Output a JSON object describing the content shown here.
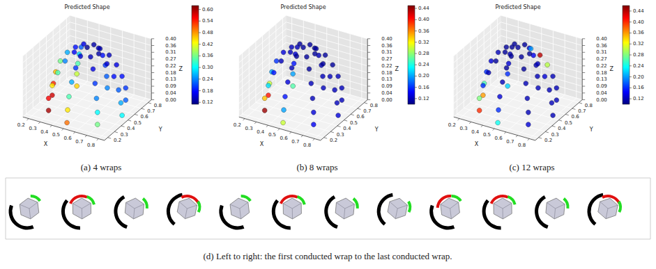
{
  "chart_data": [
    {
      "type": "scatter3d",
      "title": "Predicted Shape",
      "caption": "(a) 4 wraps",
      "xlabel": "X",
      "ylabel": "Y",
      "zlabel": "Z",
      "grid": true,
      "xlim": [
        0.15,
        0.85
      ],
      "ylim": [
        0.15,
        0.85
      ],
      "zlim": [
        0,
        0.4
      ],
      "xticks": [
        0.2,
        0.3,
        0.4,
        0.5,
        0.6,
        0.7,
        0.8
      ],
      "yticks": [
        0.2,
        0.3,
        0.4,
        0.5,
        0.6,
        0.7,
        0.8
      ],
      "zticks": [
        {
          "value": 0,
          "label": "0.00"
        },
        {
          "value": 0.0444,
          "label": "0.04"
        },
        {
          "value": 0.0889,
          "label": "0.09"
        },
        {
          "value": 0.1333,
          "label": "0.13"
        },
        {
          "value": 0.1778,
          "label": "0.18"
        },
        {
          "value": 0.2222,
          "label": "0.22"
        },
        {
          "value": 0.2667,
          "label": "0.27"
        },
        {
          "value": 0.3111,
          "label": "0.31"
        },
        {
          "value": 0.3556,
          "label": "0.36"
        },
        {
          "value": 0.4,
          "label": "0.40"
        }
      ],
      "color_range": [
        0.11,
        0.62
      ],
      "color_ticks": [
        0.12,
        0.18,
        0.24,
        {
          "value": 0.3,
          "label": "0.30"
        },
        0.36,
        0.42,
        0.48,
        0.54,
        {
          "value": 0.6,
          "label": "0.60"
        }
      ],
      "points": [
        [
          0.8,
          0.5,
          0.02,
          0.3
        ],
        [
          0.71,
          0.71,
          0.02,
          0.22
        ],
        [
          0.5,
          0.8,
          0.02,
          0.24
        ],
        [
          0.29,
          0.71,
          0.02,
          0.45
        ],
        [
          0.2,
          0.5,
          0.02,
          0.58
        ],
        [
          0.29,
          0.29,
          0.02,
          0.6
        ],
        [
          0.5,
          0.2,
          0.02,
          0.5
        ],
        [
          0.71,
          0.29,
          0.02,
          0.36
        ],
        [
          0.79,
          0.5,
          0.1,
          0.26
        ],
        [
          0.71,
          0.71,
          0.1,
          0.2
        ],
        [
          0.5,
          0.79,
          0.1,
          0.22
        ],
        [
          0.29,
          0.71,
          0.1,
          0.4
        ],
        [
          0.21,
          0.5,
          0.1,
          0.54
        ],
        [
          0.29,
          0.29,
          0.1,
          0.56
        ],
        [
          0.5,
          0.21,
          0.1,
          0.44
        ],
        [
          0.71,
          0.29,
          0.1,
          0.3
        ],
        [
          0.77,
          0.5,
          0.18,
          0.22
        ],
        [
          0.69,
          0.69,
          0.18,
          0.18
        ],
        [
          0.5,
          0.77,
          0.18,
          0.2
        ],
        [
          0.31,
          0.69,
          0.18,
          0.34
        ],
        [
          0.23,
          0.5,
          0.18,
          0.46
        ],
        [
          0.31,
          0.31,
          0.18,
          0.44
        ],
        [
          0.5,
          0.23,
          0.18,
          0.34
        ],
        [
          0.69,
          0.31,
          0.18,
          0.24
        ],
        [
          0.73,
          0.5,
          0.26,
          0.18
        ],
        [
          0.66,
          0.66,
          0.26,
          0.16
        ],
        [
          0.5,
          0.73,
          0.26,
          0.18
        ],
        [
          0.34,
          0.66,
          0.26,
          0.28
        ],
        [
          0.27,
          0.5,
          0.26,
          0.36
        ],
        [
          0.34,
          0.34,
          0.26,
          0.34
        ],
        [
          0.5,
          0.27,
          0.26,
          0.26
        ],
        [
          0.66,
          0.34,
          0.26,
          0.2
        ],
        [
          0.67,
          0.5,
          0.33,
          0.15
        ],
        [
          0.62,
          0.62,
          0.33,
          0.14
        ],
        [
          0.5,
          0.67,
          0.33,
          0.15
        ],
        [
          0.38,
          0.62,
          0.33,
          0.22
        ],
        [
          0.33,
          0.5,
          0.33,
          0.26
        ],
        [
          0.38,
          0.38,
          0.33,
          0.24
        ],
        [
          0.5,
          0.33,
          0.33,
          0.2
        ],
        [
          0.62,
          0.38,
          0.33,
          0.16
        ],
        [
          0.6,
          0.5,
          0.38,
          0.13
        ],
        [
          0.57,
          0.57,
          0.38,
          0.13
        ],
        [
          0.5,
          0.6,
          0.38,
          0.13
        ],
        [
          0.43,
          0.57,
          0.38,
          0.16
        ],
        [
          0.4,
          0.5,
          0.38,
          0.18
        ],
        [
          0.43,
          0.43,
          0.38,
          0.17
        ],
        [
          0.5,
          0.4,
          0.38,
          0.15
        ],
        [
          0.57,
          0.43,
          0.38,
          0.14
        ],
        [
          0.5,
          0.5,
          0.4,
          0.12
        ]
      ]
    },
    {
      "type": "scatter3d",
      "title": "Predicted Shape",
      "caption": "(b) 8 wraps",
      "xlabel": "X",
      "ylabel": "Y",
      "zlabel": "Z",
      "grid": true,
      "xlim": [
        0.15,
        0.85
      ],
      "ylim": [
        0.15,
        0.85
      ],
      "zlim": [
        0,
        0.4
      ],
      "xticks": [
        0.2,
        0.3,
        0.4,
        0.5,
        0.6,
        0.7,
        0.8
      ],
      "yticks": [
        0.2,
        0.3,
        0.4,
        0.5,
        0.6,
        0.7,
        0.8
      ],
      "zticks": [
        {
          "value": 0,
          "label": "0.00"
        },
        {
          "value": 0.0444,
          "label": "0.04"
        },
        {
          "value": 0.0889,
          "label": "0.09"
        },
        {
          "value": 0.1333,
          "label": "0.13"
        },
        {
          "value": 0.1778,
          "label": "0.18"
        },
        {
          "value": 0.2222,
          "label": "0.22"
        },
        {
          "value": 0.2667,
          "label": "0.27"
        },
        {
          "value": 0.3111,
          "label": "0.31"
        },
        {
          "value": 0.3556,
          "label": "0.36"
        },
        {
          "value": 0.4,
          "label": "0.40"
        }
      ],
      "color_range": [
        0.1,
        0.45
      ],
      "color_ticks": [
        0.12,
        0.16,
        {
          "value": 0.2,
          "label": "0.20"
        },
        0.24,
        0.28,
        0.32,
        0.36,
        {
          "value": 0.4,
          "label": "0.40"
        },
        0.44
      ],
      "points": [
        [
          0.8,
          0.5,
          0.02,
          0.13
        ],
        [
          0.71,
          0.71,
          0.02,
          0.12
        ],
        [
          0.5,
          0.8,
          0.02,
          0.12
        ],
        [
          0.29,
          0.71,
          0.02,
          0.26
        ],
        [
          0.2,
          0.5,
          0.02,
          0.4
        ],
        [
          0.29,
          0.29,
          0.02,
          0.44
        ],
        [
          0.5,
          0.2,
          0.02,
          0.3
        ],
        [
          0.71,
          0.29,
          0.02,
          0.14
        ],
        [
          0.79,
          0.5,
          0.1,
          0.12
        ],
        [
          0.71,
          0.71,
          0.1,
          0.12
        ],
        [
          0.5,
          0.79,
          0.1,
          0.12
        ],
        [
          0.29,
          0.71,
          0.1,
          0.2
        ],
        [
          0.21,
          0.5,
          0.1,
          0.3
        ],
        [
          0.29,
          0.29,
          0.1,
          0.34
        ],
        [
          0.5,
          0.21,
          0.1,
          0.2
        ],
        [
          0.71,
          0.29,
          0.1,
          0.13
        ],
        [
          0.77,
          0.5,
          0.18,
          0.12
        ],
        [
          0.69,
          0.69,
          0.18,
          0.12
        ],
        [
          0.5,
          0.77,
          0.18,
          0.12
        ],
        [
          0.31,
          0.69,
          0.18,
          0.15
        ],
        [
          0.23,
          0.5,
          0.18,
          0.2
        ],
        [
          0.31,
          0.31,
          0.18,
          0.22
        ],
        [
          0.5,
          0.23,
          0.18,
          0.15
        ],
        [
          0.69,
          0.31,
          0.18,
          0.12
        ],
        [
          0.73,
          0.5,
          0.26,
          0.12
        ],
        [
          0.66,
          0.66,
          0.26,
          0.11
        ],
        [
          0.5,
          0.73,
          0.26,
          0.12
        ],
        [
          0.34,
          0.66,
          0.26,
          0.13
        ],
        [
          0.27,
          0.5,
          0.26,
          0.16
        ],
        [
          0.34,
          0.34,
          0.26,
          0.15
        ],
        [
          0.5,
          0.27,
          0.26,
          0.13
        ],
        [
          0.66,
          0.34,
          0.26,
          0.12
        ],
        [
          0.67,
          0.5,
          0.33,
          0.11
        ],
        [
          0.62,
          0.62,
          0.33,
          0.11
        ],
        [
          0.5,
          0.67,
          0.33,
          0.11
        ],
        [
          0.38,
          0.62,
          0.33,
          0.12
        ],
        [
          0.33,
          0.5,
          0.33,
          0.13
        ],
        [
          0.38,
          0.38,
          0.33,
          0.12
        ],
        [
          0.5,
          0.33,
          0.33,
          0.12
        ],
        [
          0.62,
          0.38,
          0.33,
          0.11
        ],
        [
          0.6,
          0.5,
          0.38,
          0.11
        ],
        [
          0.57,
          0.57,
          0.38,
          0.11
        ],
        [
          0.5,
          0.6,
          0.38,
          0.11
        ],
        [
          0.43,
          0.57,
          0.38,
          0.11
        ],
        [
          0.4,
          0.5,
          0.38,
          0.12
        ],
        [
          0.43,
          0.43,
          0.38,
          0.12
        ],
        [
          0.5,
          0.4,
          0.38,
          0.11
        ],
        [
          0.57,
          0.43,
          0.38,
          0.11
        ],
        [
          0.5,
          0.5,
          0.4,
          0.11
        ]
      ]
    },
    {
      "type": "scatter3d",
      "title": "Predicted Shape",
      "caption": "(c) 12 wraps",
      "xlabel": "X",
      "ylabel": "Y",
      "zlabel": "Z",
      "grid": true,
      "xlim": [
        0.15,
        0.85
      ],
      "ylim": [
        0.15,
        0.85
      ],
      "zlim": [
        0,
        0.4
      ],
      "xticks": [
        0.2,
        0.3,
        0.4,
        0.5,
        0.6,
        0.7,
        0.8
      ],
      "yticks": [
        0.2,
        0.3,
        0.4,
        0.5,
        0.6,
        0.7,
        0.8
      ],
      "zticks": [
        {
          "value": 0,
          "label": "0.00"
        },
        {
          "value": 0.0444,
          "label": "0.04"
        },
        {
          "value": 0.0889,
          "label": "0.09"
        },
        {
          "value": 0.1333,
          "label": "0.13"
        },
        {
          "value": 0.1778,
          "label": "0.18"
        },
        {
          "value": 0.2222,
          "label": "0.22"
        },
        {
          "value": 0.2667,
          "label": "0.27"
        },
        {
          "value": 0.3111,
          "label": "0.31"
        },
        {
          "value": 0.3556,
          "label": "0.36"
        },
        {
          "value": 0.4,
          "label": "0.40"
        }
      ],
      "color_range": [
        0.1,
        0.46
      ],
      "color_ticks": [
        0.12,
        0.16,
        {
          "value": 0.2,
          "label": "0.20"
        },
        0.24,
        0.28,
        0.32,
        0.36,
        {
          "value": 0.4,
          "label": "0.40"
        },
        0.44
      ],
      "points": [
        [
          0.8,
          0.5,
          0.02,
          0.12
        ],
        [
          0.71,
          0.71,
          0.02,
          0.12
        ],
        [
          0.5,
          0.8,
          0.02,
          0.12
        ],
        [
          0.29,
          0.71,
          0.02,
          0.22
        ],
        [
          0.2,
          0.5,
          0.02,
          0.36
        ],
        [
          0.29,
          0.29,
          0.02,
          0.4
        ],
        [
          0.5,
          0.2,
          0.02,
          0.24
        ],
        [
          0.71,
          0.29,
          0.02,
          0.13
        ],
        [
          0.79,
          0.5,
          0.1,
          0.12
        ],
        [
          0.71,
          0.71,
          0.1,
          0.12
        ],
        [
          0.5,
          0.79,
          0.1,
          0.12
        ],
        [
          0.29,
          0.71,
          0.1,
          0.16
        ],
        [
          0.21,
          0.5,
          0.1,
          0.26
        ],
        [
          0.29,
          0.29,
          0.1,
          0.28
        ],
        [
          0.5,
          0.21,
          0.1,
          0.16
        ],
        [
          0.71,
          0.29,
          0.1,
          0.12
        ],
        [
          0.77,
          0.5,
          0.18,
          0.12
        ],
        [
          0.69,
          0.69,
          0.18,
          0.12
        ],
        [
          0.5,
          0.77,
          0.18,
          0.12
        ],
        [
          0.31,
          0.69,
          0.18,
          0.13
        ],
        [
          0.23,
          0.5,
          0.18,
          0.16
        ],
        [
          0.31,
          0.31,
          0.18,
          0.16
        ],
        [
          0.5,
          0.23,
          0.18,
          0.13
        ],
        [
          0.69,
          0.31,
          0.18,
          0.12
        ],
        [
          0.73,
          0.5,
          0.26,
          0.13
        ],
        [
          0.66,
          0.66,
          0.26,
          0.3
        ],
        [
          0.5,
          0.73,
          0.26,
          0.14
        ],
        [
          0.34,
          0.66,
          0.26,
          0.12
        ],
        [
          0.27,
          0.5,
          0.26,
          0.13
        ],
        [
          0.34,
          0.34,
          0.26,
          0.12
        ],
        [
          0.5,
          0.27,
          0.26,
          0.12
        ],
        [
          0.66,
          0.34,
          0.26,
          0.12
        ],
        [
          0.67,
          0.5,
          0.33,
          0.12
        ],
        [
          0.62,
          0.62,
          0.33,
          0.44
        ],
        [
          0.5,
          0.67,
          0.33,
          0.13
        ],
        [
          0.38,
          0.62,
          0.33,
          0.11
        ],
        [
          0.33,
          0.5,
          0.33,
          0.12
        ],
        [
          0.38,
          0.38,
          0.33,
          0.11
        ],
        [
          0.5,
          0.33,
          0.33,
          0.11
        ],
        [
          0.62,
          0.38,
          0.33,
          0.11
        ],
        [
          0.6,
          0.5,
          0.38,
          0.11
        ],
        [
          0.57,
          0.57,
          0.38,
          0.2
        ],
        [
          0.5,
          0.6,
          0.38,
          0.11
        ],
        [
          0.43,
          0.57,
          0.38,
          0.11
        ],
        [
          0.4,
          0.5,
          0.38,
          0.11
        ],
        [
          0.43,
          0.43,
          0.38,
          0.11
        ],
        [
          0.5,
          0.4,
          0.38,
          0.11
        ],
        [
          0.57,
          0.43,
          0.38,
          0.11
        ],
        [
          0.5,
          0.5,
          0.4,
          0.11
        ]
      ]
    }
  ],
  "strip": {
    "caption": "(d) Left to right: the first conducted wrap to the last conducted wrap.",
    "count": 12
  }
}
